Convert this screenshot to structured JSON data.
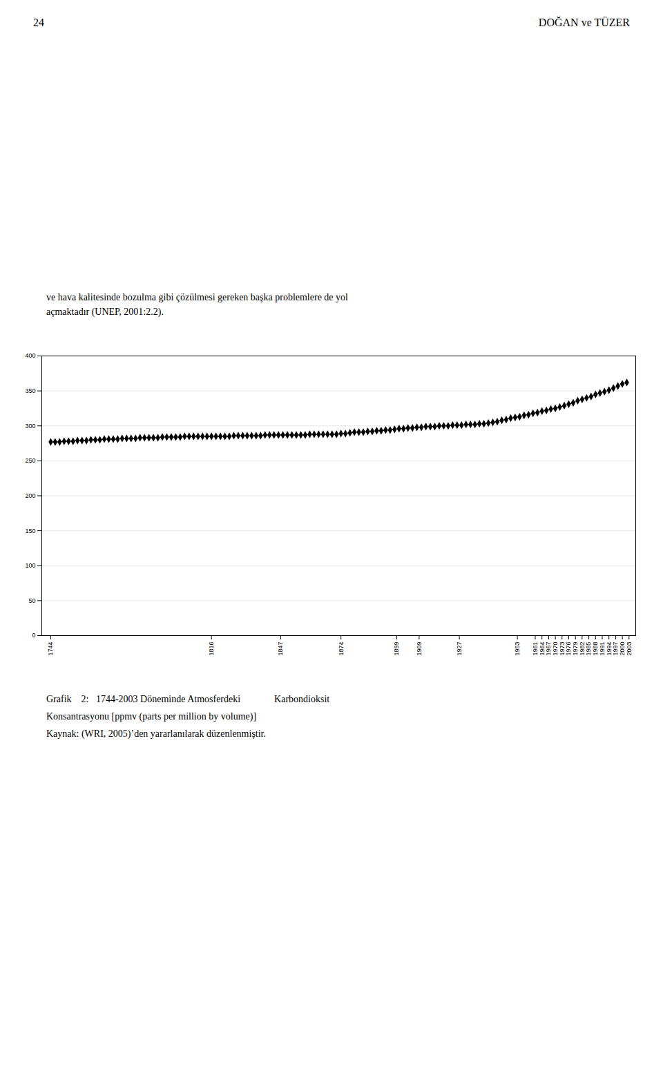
{
  "chart_data": {
    "type": "line",
    "annotations": [
      "24",
      "DOĞAN ve TÜZER",
      "ve hava kalitesinde bozulma gibi çözülmesi gereken başka problemlere de yol\naçmaktadır (UNEP, 2001:2.2).",
      "Grafik    2:   1744-2003 Döneminde Atmosferdeki              Karbondioksit",
      "Konsantrasyonu [ppmv (parts per million by volume)]",
      "Kaynak: (WRI, 2005)’den yararlanılarak düzenlenmiştir."
    ],
    "x": [
      1744,
      1746,
      1748,
      1750,
      1752,
      1754,
      1756,
      1758,
      1760,
      1762,
      1764,
      1766,
      1768,
      1770,
      1772,
      1774,
      1776,
      1778,
      1780,
      1782,
      1784,
      1786,
      1788,
      1790,
      1792,
      1794,
      1796,
      1798,
      1800,
      1802,
      1804,
      1806,
      1808,
      1810,
      1812,
      1814,
      1816,
      1818,
      1820,
      1822,
      1824,
      1826,
      1828,
      1830,
      1832,
      1834,
      1836,
      1838,
      1840,
      1842,
      1844,
      1846,
      1848,
      1850,
      1852,
      1854,
      1856,
      1858,
      1860,
      1862,
      1864,
      1866,
      1868,
      1870,
      1872,
      1874,
      1876,
      1878,
      1880,
      1882,
      1884,
      1886,
      1888,
      1890,
      1892,
      1894,
      1896,
      1898,
      1900,
      1902,
      1904,
      1906,
      1908,
      1910,
      1912,
      1914,
      1916,
      1918,
      1920,
      1922,
      1924,
      1926,
      1928,
      1930,
      1932,
      1934,
      1936,
      1938,
      1940,
      1942,
      1944,
      1946,
      1948,
      1950,
      1952,
      1954,
      1956,
      1958,
      1960,
      1962,
      1964,
      1966,
      1968,
      1970,
      1972,
      1974,
      1976,
      1978,
      1980,
      1982,
      1984,
      1986,
      1988,
      1990,
      1992,
      1994,
      1996,
      1998,
      2000,
      2002
    ],
    "values": [
      277,
      277,
      277,
      278,
      278,
      278,
      279,
      279,
      279,
      280,
      280,
      280,
      281,
      281,
      281,
      281,
      282,
      282,
      282,
      282,
      283,
      283,
      283,
      283,
      283,
      284,
      284,
      284,
      284,
      284,
      285,
      285,
      285,
      285,
      285,
      285,
      285,
      285,
      285,
      285,
      285,
      286,
      286,
      286,
      286,
      286,
      286,
      286,
      287,
      287,
      287,
      287,
      287,
      287,
      287,
      287,
      287,
      287,
      288,
      288,
      288,
      288,
      288,
      288,
      288,
      289,
      289,
      290,
      291,
      291,
      291,
      292,
      292,
      293,
      293,
      294,
      294,
      295,
      296,
      296,
      297,
      297,
      298,
      298,
      299,
      299,
      299,
      300,
      300,
      300,
      301,
      301,
      301,
      302,
      302,
      302,
      303,
      303,
      304,
      305,
      306,
      308,
      309,
      311,
      312,
      313,
      315,
      316,
      318,
      319,
      321,
      322,
      324,
      325,
      327,
      329,
      331,
      333,
      336,
      338,
      340,
      342,
      345,
      347,
      349,
      351,
      354,
      357,
      360,
      362
    ],
    "color": "#000000",
    "marker": "diamond",
    "xlim": [
      1740,
      2006
    ],
    "xticks": [
      1744,
      1816,
      1847,
      1874,
      1899,
      1909,
      1927,
      1953,
      1961,
      1964,
      1967,
      1970,
      1973,
      1976,
      1979,
      1982,
      1985,
      1988,
      1991,
      1994,
      1997,
      2000,
      2003
    ],
    "ylim": [
      0,
      400
    ],
    "yticks": [
      0,
      50,
      100,
      150,
      200,
      250,
      300,
      350,
      400
    ],
    "grid": true
  }
}
